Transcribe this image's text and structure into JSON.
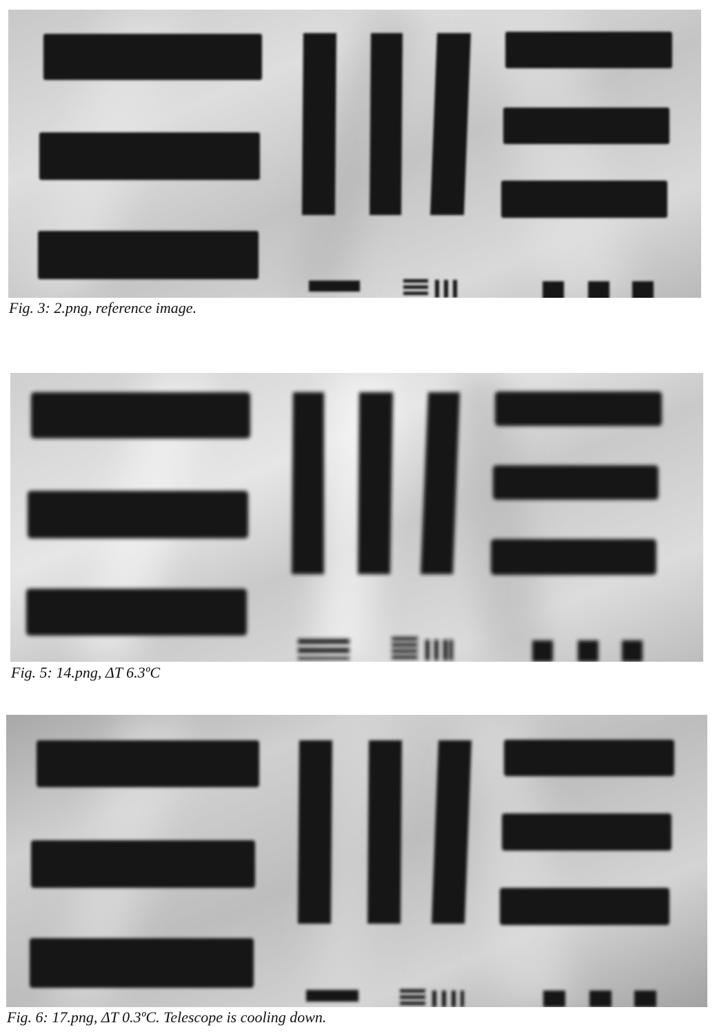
{
  "figures": [
    {
      "caption": "Fig. 3: 2.png, reference image.",
      "blur": "soft"
    },
    {
      "caption": "Fig. 5: 14.png, ΔT 6.3ºC",
      "blur": "strong"
    },
    {
      "caption": "Fig. 6: 17.png, ΔT 0.3ºC. Telescope is cooling down.",
      "blur": "medium"
    }
  ],
  "colors": {
    "bar": "#161616",
    "background_light": "#dcdcdc",
    "background_dark": "#a9a9a9"
  }
}
